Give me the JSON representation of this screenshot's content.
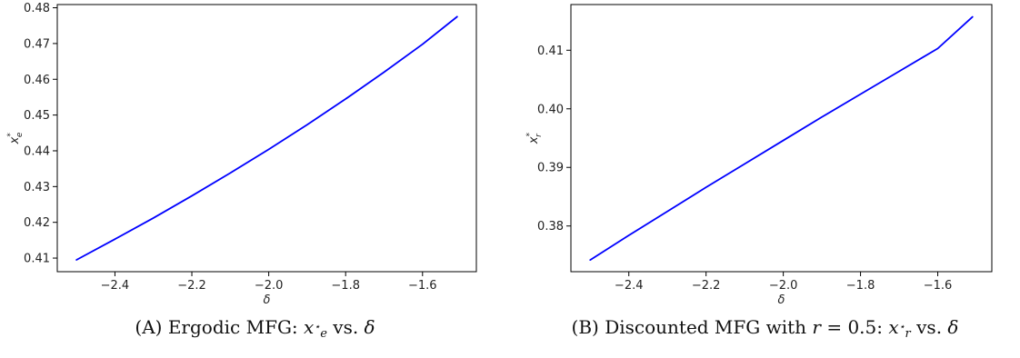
{
  "chart_data": [
    {
      "type": "line",
      "xlabel": "δ",
      "ylabel": "x",
      "ylabel_sub": "e",
      "ylabel_sup": "*",
      "xlim": [
        -2.55,
        -1.46
      ],
      "ylim": [
        0.4062,
        0.4809
      ],
      "xticks": [
        -2.4,
        -2.2,
        -2.0,
        -1.8,
        -1.6
      ],
      "xtick_labels": [
        "−2.4",
        "−2.2",
        "−2.0",
        "−1.8",
        "−1.6"
      ],
      "yticks": [
        0.41,
        0.42,
        0.43,
        0.44,
        0.45,
        0.46,
        0.47,
        0.48
      ],
      "ytick_labels": [
        "0.41",
        "0.42",
        "0.43",
        "0.44",
        "0.45",
        "0.46",
        "0.47",
        "0.48"
      ],
      "grid": false,
      "color": "#0000ff",
      "series": [
        {
          "x": [
            -2.5,
            -2.4,
            -2.3,
            -2.2,
            -2.1,
            -2.0,
            -1.9,
            -1.8,
            -1.7,
            -1.6,
            -1.51
          ],
          "y": [
            0.4095,
            0.4153,
            0.4212,
            0.4274,
            0.4338,
            0.4404,
            0.4473,
            0.4545,
            0.462,
            0.4698,
            0.4775
          ]
        }
      ]
    },
    {
      "type": "line",
      "xlabel": "δ",
      "ylabel": "x",
      "ylabel_sub": "r",
      "ylabel_sup": "*",
      "xlim": [
        -2.55,
        -1.46
      ],
      "ylim": [
        0.3722,
        0.4178
      ],
      "xticks": [
        -2.4,
        -2.2,
        -2.0,
        -1.8,
        -1.6
      ],
      "xtick_labels": [
        "−2.4",
        "−2.2",
        "−2.0",
        "−1.8",
        "−1.6"
      ],
      "yticks": [
        0.38,
        0.39,
        0.4,
        0.41
      ],
      "ytick_labels": [
        "0.38",
        "0.39",
        "0.40",
        "0.41"
      ],
      "grid": false,
      "color": "#0000ff",
      "series": [
        {
          "x": [
            -2.5,
            -2.4,
            -2.3,
            -2.2,
            -2.1,
            -2.0,
            -1.9,
            -1.8,
            -1.7,
            -1.6,
            -1.51
          ],
          "y": [
            0.3742,
            0.3784,
            0.3825,
            0.3866,
            0.3906,
            0.3946,
            0.3986,
            0.4025,
            0.4064,
            0.4103,
            0.4157
          ]
        }
      ]
    }
  ],
  "captions": {
    "a": {
      "tag": "(A)",
      "text": "Ergodic MFG:",
      "var": "x",
      "sub": "e",
      "sup": "⋆",
      "tail": "vs.",
      "greek": "δ"
    },
    "b": {
      "tag": "(B)",
      "text": "Discounted MFG with",
      "r_var": "r",
      "r_eq": "= 0.5:",
      "var": "x",
      "sub": "r",
      "sup": "⋆",
      "tail": "vs.",
      "greek": "δ"
    }
  }
}
